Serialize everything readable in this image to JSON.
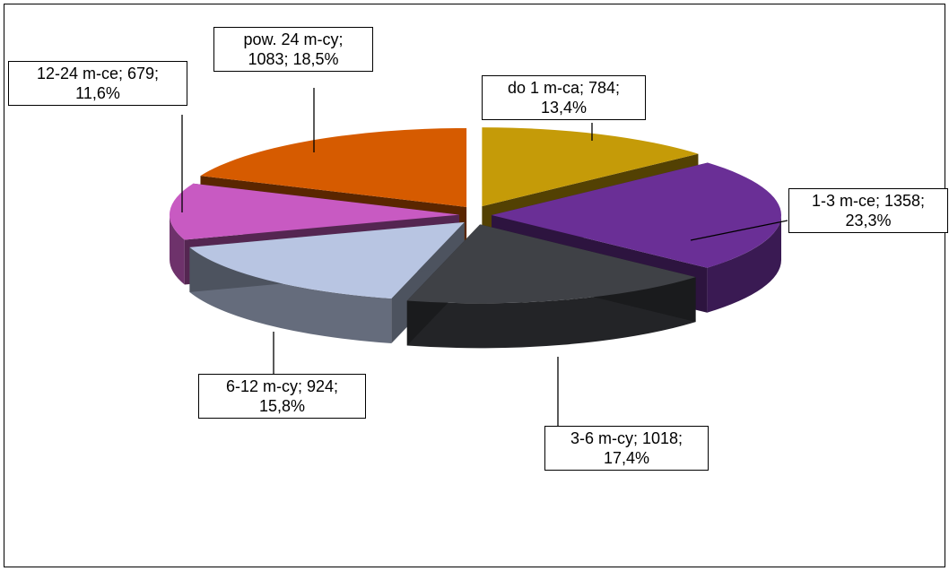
{
  "chart_data": {
    "type": "pie",
    "variant": "3d-exploded",
    "slices": [
      {
        "name": "do 1 m-ca",
        "value": 784,
        "percent": "13,4%",
        "line1": "do 1 m-ca; 784;",
        "line2": "13,4%",
        "color": "#c59b08"
      },
      {
        "name": "1-3 m-ce",
        "value": 1358,
        "percent": "23,3%",
        "line1": "1-3 m-ce; 1358;",
        "line2": "23,3%",
        "color": "#6a2f96"
      },
      {
        "name": "3-6 m-cy",
        "value": 1018,
        "percent": "17,4%",
        "line1": "3-6 m-cy; 1018;",
        "line2": "17,4%",
        "color": "#3f4146"
      },
      {
        "name": "6-12 m-cy",
        "value": 924,
        "percent": "15,8%",
        "line1": "6-12 m-cy; 924;",
        "line2": "15,8%",
        "color": "#b8c5e2"
      },
      {
        "name": "12-24 m-ce",
        "value": 679,
        "percent": "11,6%",
        "line1": "12-24 m-ce; 679;",
        "line2": "11,6%",
        "color": "#c85ac2"
      },
      {
        "name": "pow. 24 m-cy",
        "value": 1083,
        "percent": "18,5%",
        "line1": "pow. 24 m-cy;",
        "line2": "1083; 18,5%",
        "color": "#d65b00"
      }
    ],
    "legend": "none",
    "title": ""
  }
}
